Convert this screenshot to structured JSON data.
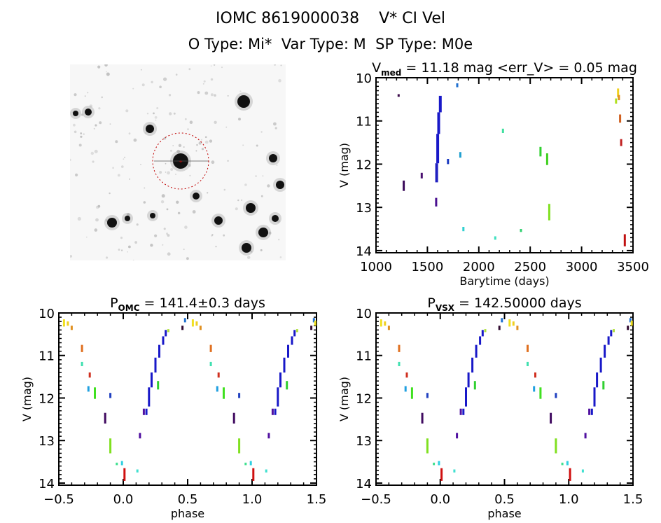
{
  "header": {
    "title_line1": "IOMC 8619000038    V* CI Vel",
    "title_line2": "O Type: Mi*  Var Type: M  SP Type: M0e"
  },
  "thumbnail": {
    "description": "sky image cutout with dashed red circle around target star",
    "circle_color": "#cc0000"
  },
  "chart_data": [
    {
      "type": "scatter",
      "title": "V_med = 11.18 mag <err_V> = 0.05 mag",
      "title_parts": {
        "main": "V",
        "sub": "med",
        "rest": " = 11.18 mag <err_V> = 0.05 mag"
      },
      "xlabel": "Barytime (days)",
      "ylabel": "V (mag)",
      "xlim": [
        1000,
        3500
      ],
      "ylim": [
        14.05,
        10.0
      ],
      "xticks": [
        "1000",
        "1500",
        "2000",
        "2500",
        "3000",
        "3500"
      ],
      "yticks": [
        "10",
        "11",
        "12",
        "13",
        "14"
      ],
      "points": [
        {
          "x": 1220,
          "y": 10.38,
          "y2": 10.44,
          "color": "#3a0a4a"
        },
        {
          "x": 1270,
          "y": 12.38,
          "y2": 12.62,
          "color": "#3a0a5a"
        },
        {
          "x": 1445,
          "y": 12.2,
          "y2": 12.33,
          "color": "#4a1070"
        },
        {
          "x": 1585,
          "y": 12.78,
          "y2": 12.98,
          "color": "#4a1090"
        },
        {
          "x": 1590,
          "y": 11.98,
          "y2": 12.42,
          "color": "#2020c0"
        },
        {
          "x": 1600,
          "y": 11.3,
          "y2": 11.98,
          "color": "#1818c8"
        },
        {
          "x": 1610,
          "y": 10.8,
          "y2": 11.3,
          "color": "#1818c8"
        },
        {
          "x": 1625,
          "y": 10.42,
          "y2": 10.8,
          "color": "#1818c8"
        },
        {
          "x": 1700,
          "y": 11.88,
          "y2": 12.0,
          "color": "#1a3ac0"
        },
        {
          "x": 1790,
          "y": 10.13,
          "y2": 10.22,
          "color": "#2070d0"
        },
        {
          "x": 1820,
          "y": 11.72,
          "y2": 11.85,
          "color": "#20a0d0"
        },
        {
          "x": 1850,
          "y": 13.45,
          "y2": 13.55,
          "color": "#30d0d0"
        },
        {
          "x": 2160,
          "y": 13.67,
          "y2": 13.75,
          "color": "#40e0c0"
        },
        {
          "x": 2235,
          "y": 11.18,
          "y2": 11.28,
          "color": "#40e0a0"
        },
        {
          "x": 2410,
          "y": 13.5,
          "y2": 13.57,
          "color": "#30d070"
        },
        {
          "x": 2600,
          "y": 11.6,
          "y2": 11.82,
          "color": "#30d030"
        },
        {
          "x": 2665,
          "y": 11.75,
          "y2": 12.02,
          "color": "#40d020"
        },
        {
          "x": 2685,
          "y": 12.92,
          "y2": 13.3,
          "color": "#80e020"
        },
        {
          "x": 3335,
          "y": 10.48,
          "y2": 10.6,
          "color": "#b0e020"
        },
        {
          "x": 3355,
          "y": 10.25,
          "y2": 10.45,
          "color": "#f0d020"
        },
        {
          "x": 3363,
          "y": 10.4,
          "y2": 10.52,
          "color": "#e09020"
        },
        {
          "x": 3375,
          "y": 10.85,
          "y2": 11.04,
          "color": "#d06020"
        },
        {
          "x": 3385,
          "y": 11.42,
          "y2": 11.58,
          "color": "#c02020"
        },
        {
          "x": 3420,
          "y": 13.62,
          "y2": 13.9,
          "color": "#c01010"
        }
      ]
    },
    {
      "type": "scatter",
      "title": "P_OMC = 141.4±0.3 days",
      "title_parts": {
        "main": "P",
        "sub": "OMC",
        "rest": " = 141.4±0.3 days"
      },
      "xlabel": "phase",
      "ylabel": "V (mag)",
      "xlim": [
        -0.5,
        1.5
      ],
      "ylim": [
        14.05,
        10.0
      ],
      "xticks": [
        "−0.5",
        "0.0",
        "0.5",
        "1.0",
        "1.5"
      ],
      "yticks": [
        "10",
        "11",
        "12",
        "13",
        "14"
      ],
      "period_days": 141.4,
      "t0_days": 1610,
      "epoch_phase_offset": 0.0
    },
    {
      "type": "scatter",
      "title": "P_VSX = 142.50000 days",
      "title_parts": {
        "main": "P",
        "sub": "VSX",
        "rest": " = 142.50000 days"
      },
      "xlabel": "phase",
      "ylabel": "V (mag)",
      "xlim": [
        -0.5,
        1.5
      ],
      "ylim": [
        14.05,
        10.0
      ],
      "xticks": [
        "−0.5",
        "0.0",
        "0.5",
        "1.0",
        "1.5"
      ],
      "yticks": [
        "10",
        "11",
        "12",
        "13",
        "14"
      ],
      "period_days": 142.5,
      "t0_days": 1610,
      "epoch_phase_offset": 0.0
    }
  ],
  "phase_points": [
    {
      "phase": -0.46,
      "y": 10.15,
      "y2": 10.32,
      "color": "#f0e020"
    },
    {
      "phase": -0.43,
      "y": 10.2,
      "y2": 10.3,
      "color": "#f0d020"
    },
    {
      "phase": -0.4,
      "y": 10.3,
      "y2": 10.4,
      "color": "#e09020"
    },
    {
      "phase": -0.32,
      "y": 10.75,
      "y2": 10.92,
      "color": "#e07020"
    },
    {
      "phase": -0.32,
      "y": 11.15,
      "y2": 11.25,
      "color": "#40e0b0"
    },
    {
      "phase": -0.26,
      "y": 11.4,
      "y2": 11.52,
      "color": "#d03020"
    },
    {
      "phase": -0.27,
      "y": 11.72,
      "y2": 11.85,
      "color": "#20a0e0"
    },
    {
      "phase": -0.22,
      "y": 11.75,
      "y2": 12.02,
      "color": "#40e020"
    },
    {
      "phase": -0.1,
      "y": 11.88,
      "y2": 12.0,
      "color": "#2040c0"
    },
    {
      "phase": -0.14,
      "y": 12.35,
      "y2": 12.6,
      "color": "#400a60"
    },
    {
      "phase": -0.1,
      "y": 12.95,
      "y2": 13.3,
      "color": "#80e020"
    },
    {
      "phase": -0.05,
      "y": 13.52,
      "y2": 13.58,
      "color": "#40e090"
    },
    {
      "phase": -0.01,
      "y": 13.48,
      "y2": 13.58,
      "color": "#30d0e0"
    },
    {
      "phase": 0.01,
      "y": 13.65,
      "y2": 13.95,
      "color": "#d01010"
    },
    {
      "phase": 0.11,
      "y": 13.68,
      "y2": 13.75,
      "color": "#40e0d0"
    },
    {
      "phase": 0.13,
      "y": 12.82,
      "y2": 12.95,
      "color": "#5010a0"
    },
    {
      "phase": 0.16,
      "y": 12.25,
      "y2": 12.4,
      "color": "#5010a0"
    },
    {
      "phase": 0.18,
      "y": 12.25,
      "y2": 12.4,
      "color": "#1818c8"
    },
    {
      "phase": 0.2,
      "y": 11.75,
      "y2": 12.2,
      "color": "#1818c8"
    },
    {
      "phase": 0.22,
      "y": 11.4,
      "y2": 11.75,
      "color": "#1818c8"
    },
    {
      "phase": 0.25,
      "y": 11.05,
      "y2": 11.4,
      "color": "#1818c8"
    },
    {
      "phase": 0.28,
      "y": 10.75,
      "y2": 11.05,
      "color": "#1818c8"
    },
    {
      "phase": 0.31,
      "y": 10.55,
      "y2": 10.75,
      "color": "#1818c8"
    },
    {
      "phase": 0.33,
      "y": 10.4,
      "y2": 10.55,
      "color": "#1818c8"
    },
    {
      "phase": 0.27,
      "y": 11.6,
      "y2": 11.8,
      "color": "#30d030"
    },
    {
      "phase": 0.35,
      "y": 10.38,
      "y2": 10.45,
      "color": "#b0e040"
    },
    {
      "phase": 0.46,
      "y": 10.3,
      "y2": 10.4,
      "color": "#300a30"
    },
    {
      "phase": 0.48,
      "y": 10.12,
      "y2": 10.22,
      "color": "#2070d0"
    }
  ]
}
